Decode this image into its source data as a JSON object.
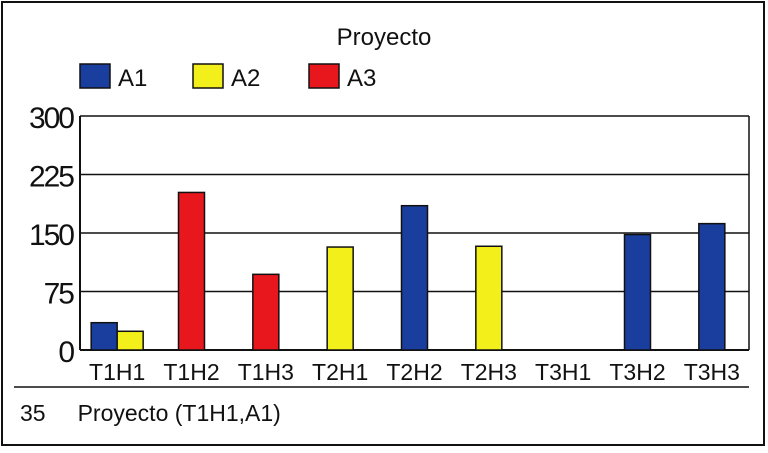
{
  "chart_data": {
    "type": "bar",
    "title": "Proyecto",
    "categories": [
      "T1H1",
      "T1H2",
      "T1H3",
      "T2H1",
      "T2H2",
      "T2H3",
      "T3H1",
      "T3H2",
      "T3H3"
    ],
    "series": [
      {
        "name": "A1",
        "color": "#1a3e9e",
        "values": [
          35,
          null,
          null,
          null,
          185,
          null,
          null,
          148,
          162
        ]
      },
      {
        "name": "A2",
        "color": "#f2ef1a",
        "values": [
          24,
          null,
          null,
          132,
          null,
          133,
          null,
          null,
          null
        ]
      },
      {
        "name": "A3",
        "color": "#e8171e",
        "values": [
          null,
          202,
          97,
          null,
          null,
          null,
          null,
          null,
          null
        ]
      }
    ],
    "ylim": [
      0,
      300
    ],
    "yticks": [
      0,
      75,
      150,
      225,
      300
    ],
    "grid": true,
    "legend": "top-left"
  },
  "status": {
    "value": "35",
    "label": "Proyecto (T1H1,A1)"
  }
}
